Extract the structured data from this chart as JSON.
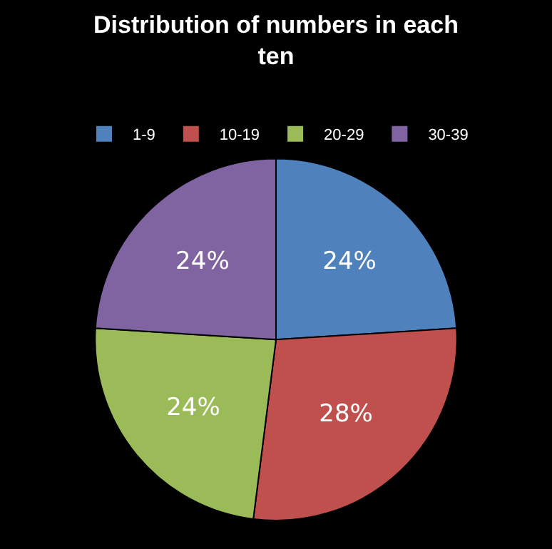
{
  "chart_data": {
    "type": "pie",
    "title": "Distribution of numbers in each ten",
    "categories": [
      "1-9",
      "10-19",
      "20-29",
      "30-39"
    ],
    "values": [
      24,
      28,
      24,
      24
    ],
    "colors": [
      "#4f81bd",
      "#c0504d",
      "#9bbb59",
      "#8064a2"
    ],
    "value_labels": [
      "24%",
      "28%",
      "24%",
      "24%"
    ],
    "legend": "top"
  }
}
